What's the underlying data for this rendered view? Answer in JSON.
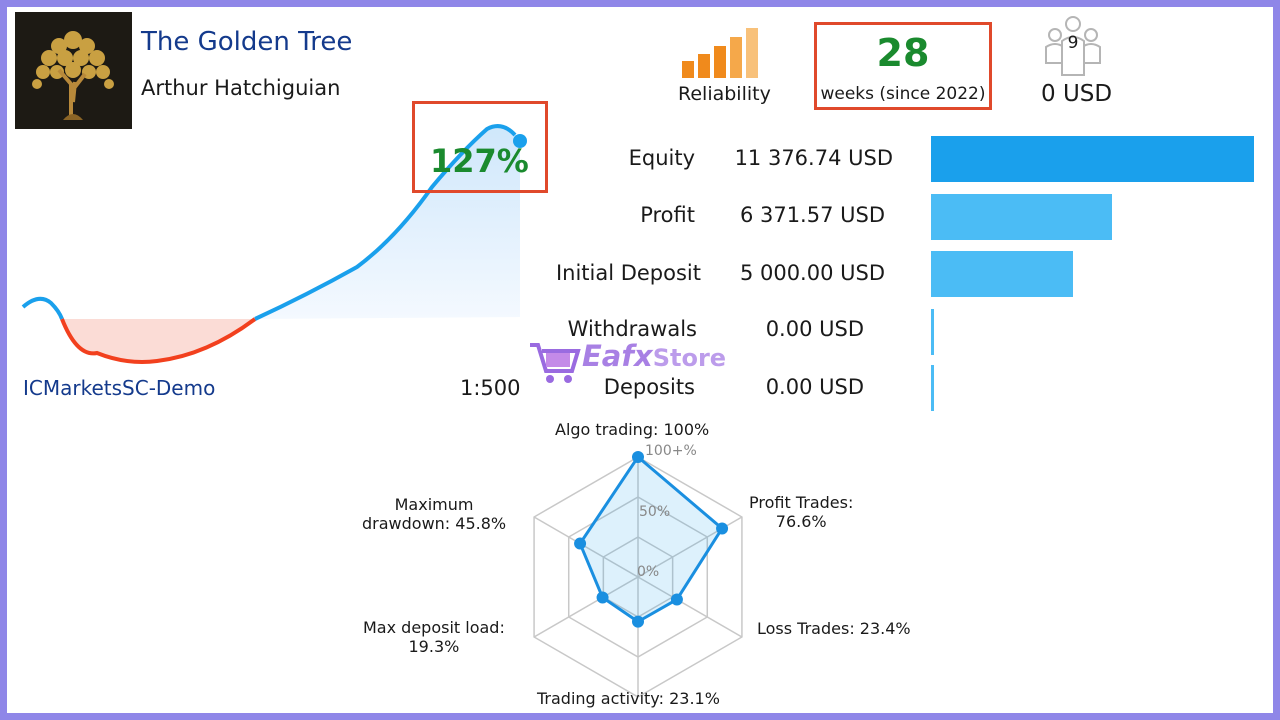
{
  "header": {
    "title": "The Golden Tree",
    "author": "Arthur Hatchiguian",
    "reliability_label": "Reliability",
    "reliability_level": 5,
    "weeks_number": "28",
    "weeks_label": "weeks (since 2022)",
    "subscribers_count": "9",
    "subscription_price": "0 USD"
  },
  "growth": {
    "percent": "127%",
    "broker": "ICMarketsSC-Demo",
    "leverage": "1:500"
  },
  "stats": [
    {
      "label": "Equity",
      "value": "11 376.74 USD",
      "bar_fraction": 1.0,
      "bar_color": "#1aa0ec"
    },
    {
      "label": "Profit",
      "value": "6 371.57 USD",
      "bar_fraction": 0.56,
      "bar_color": "#4bbcf5"
    },
    {
      "label": "Initial Deposit",
      "value": "5 000.00 USD",
      "bar_fraction": 0.44,
      "bar_color": "#4bbcf5"
    },
    {
      "label": "Withdrawals",
      "value": "0.00 USD",
      "bar_fraction": 0.0,
      "bar_color": "#4bbcf5"
    },
    {
      "label": "Deposits",
      "value": "0.00 USD",
      "bar_fraction": 0.0,
      "bar_color": "#4bbcf5"
    }
  ],
  "watermark": {
    "brand": "Eafx",
    "store": "Store"
  },
  "radar": {
    "scale_labels": [
      "100+%",
      "50%",
      "0%"
    ],
    "axes": [
      {
        "label": "Algo trading: 100%",
        "value": 100
      },
      {
        "label": "Profit Trades:\n76.6%",
        "value": 76.6
      },
      {
        "label": "Loss Trades: 23.4%",
        "value": 23.4
      },
      {
        "label": "Trading activity: 23.1%",
        "value": 23.1
      },
      {
        "label": "Max deposit load:\n19.3%",
        "value": 19.3
      },
      {
        "label": "Maximum\ndrawdown: 45.8%",
        "value": 45.8
      }
    ]
  },
  "colors": {
    "accent_blue": "#1aa0ec",
    "drawdown_red": "#f2401e",
    "growth_green": "#1a8a2e",
    "highlight_border": "#e0492b",
    "reliability_orange": "#f08a1c"
  }
}
